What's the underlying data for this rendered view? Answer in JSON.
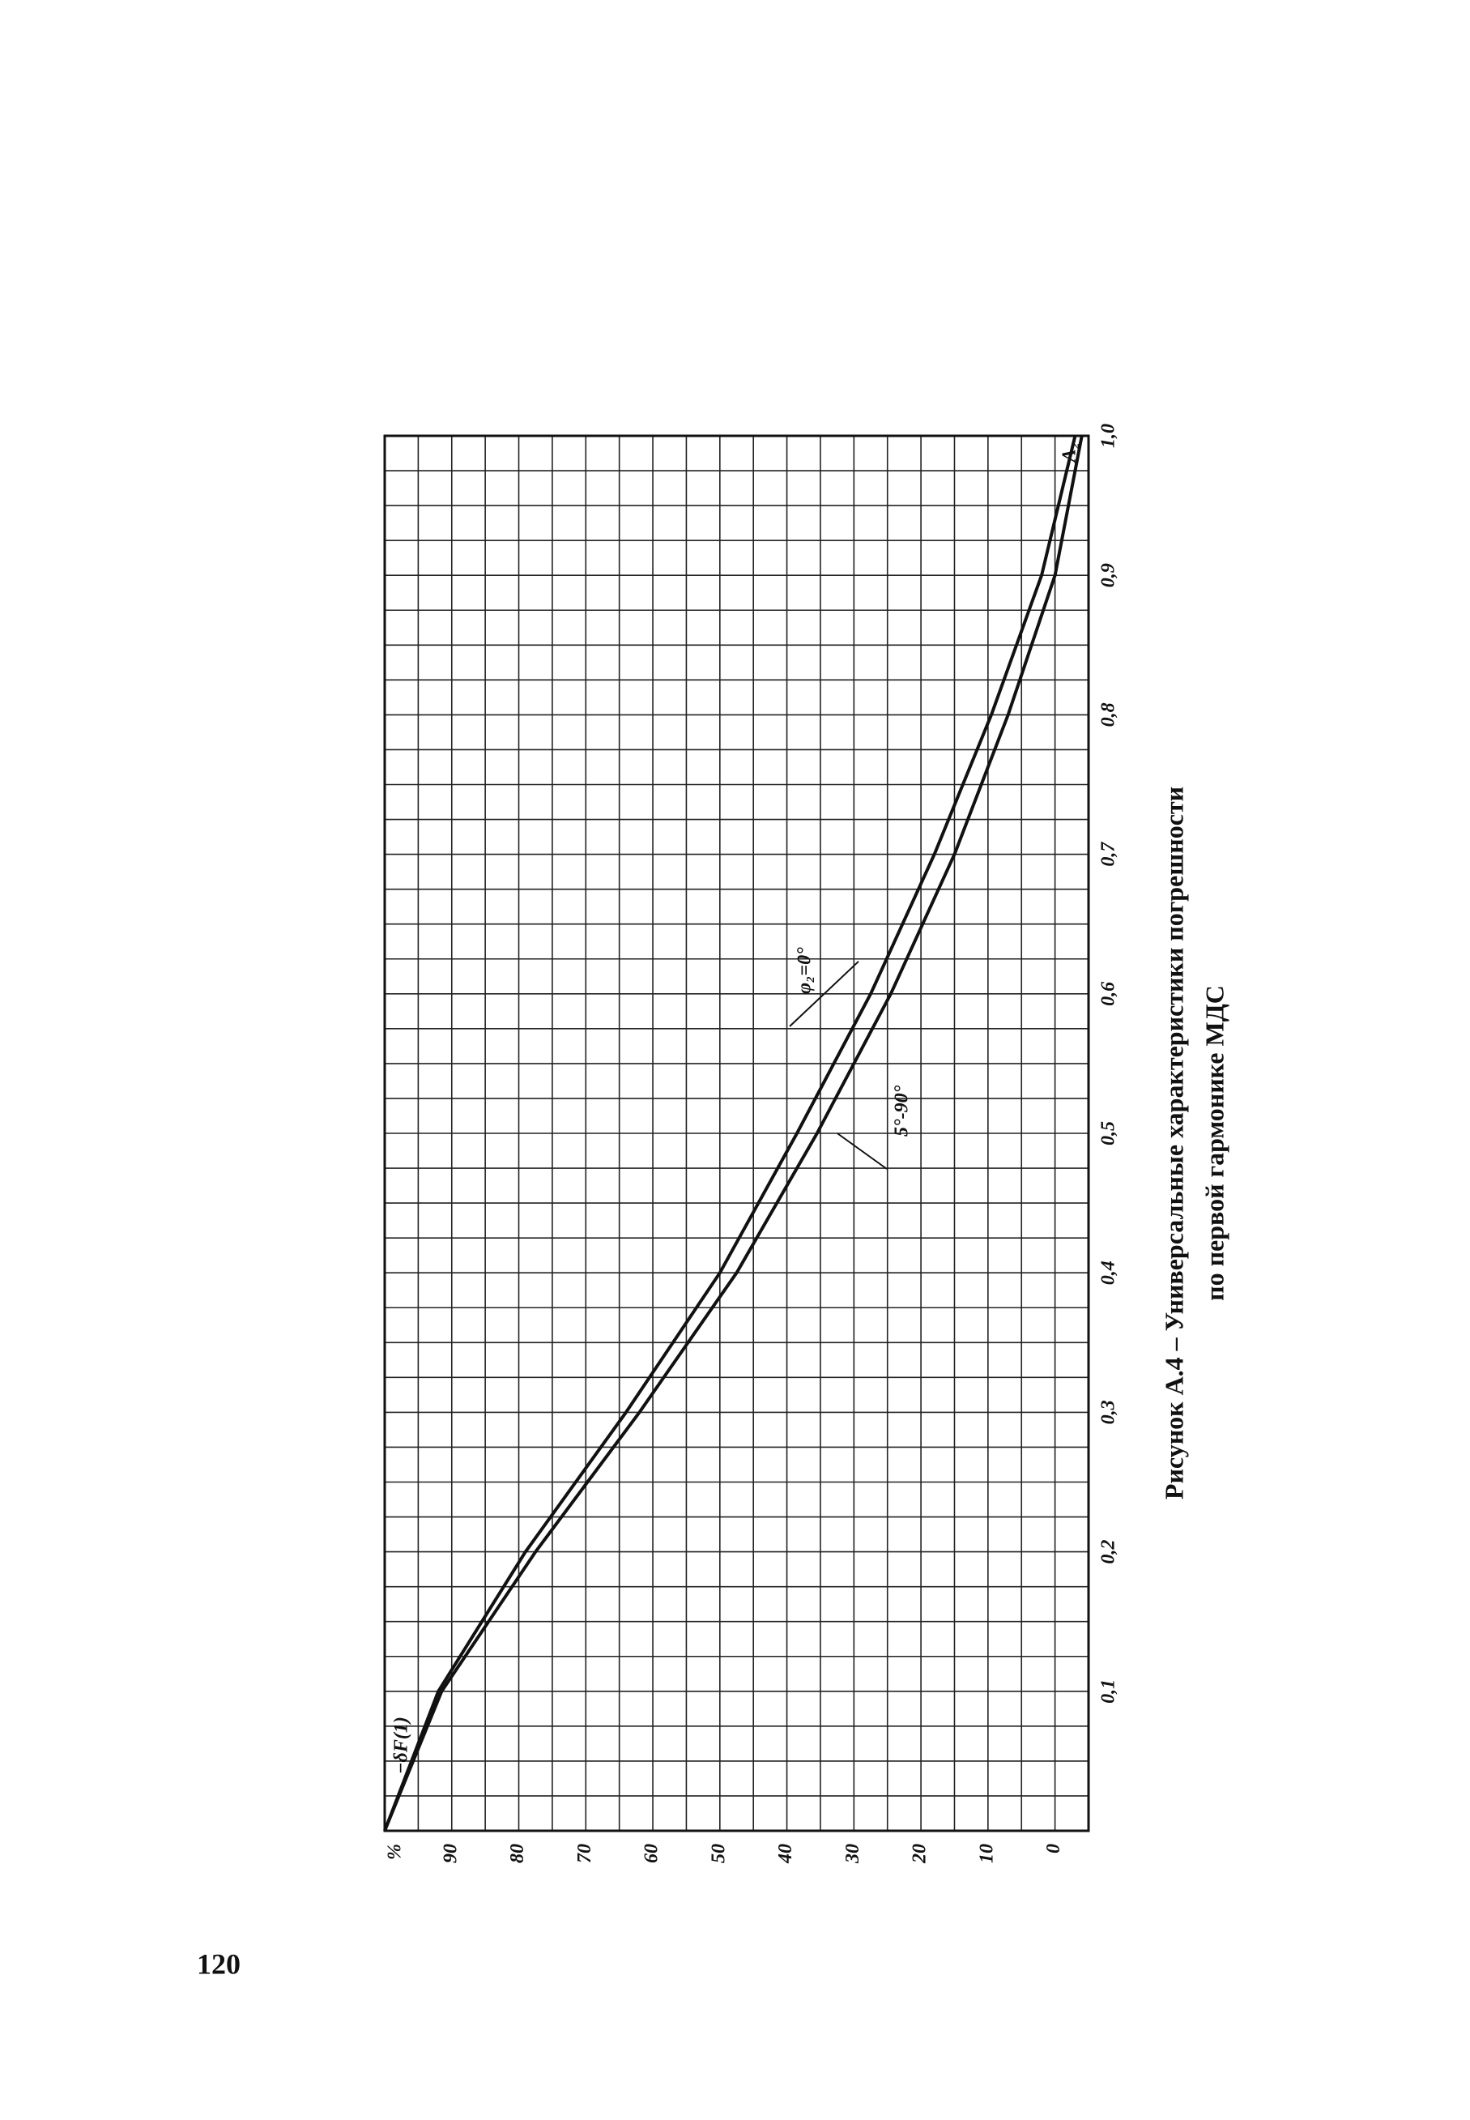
{
  "page_number": "120",
  "caption": [
    "Рисунок А.4 – Универсальные характеристики погрешности",
    "по первой гармонике МДС"
  ],
  "chart_data": {
    "type": "line",
    "x_label": "A₂",
    "y_label": "%",
    "annotation": "−δF(1)",
    "x": [
      0,
      0.1,
      0.2,
      0.3,
      0.4,
      0.5,
      0.6,
      0.7,
      0.8,
      0.9,
      1.0
    ],
    "series": [
      {
        "name": "φ₂=0°",
        "color": "#111111",
        "values": [
          100,
          92,
          79,
          64,
          50,
          38.5,
          27.5,
          18,
          9.5,
          2,
          -3
        ]
      },
      {
        "name": "5°-90°",
        "color": "#111111",
        "values": [
          100,
          91.5,
          77.5,
          62,
          47.5,
          35.5,
          24.5,
          15,
          7,
          0,
          -4
        ]
      }
    ],
    "xlim": [
      0,
      1
    ],
    "ylim": [
      -5,
      100
    ],
    "xticks": [
      {
        "value": 0.1,
        "label": "0,1"
      },
      {
        "value": 0.2,
        "label": "0,2"
      },
      {
        "value": 0.3,
        "label": "0,3"
      },
      {
        "value": 0.4,
        "label": "0,4"
      },
      {
        "value": 0.5,
        "label": "0,5"
      },
      {
        "value": 0.6,
        "label": "0,6"
      },
      {
        "value": 0.7,
        "label": "0,7"
      },
      {
        "value": 0.8,
        "label": "0,8"
      },
      {
        "value": 0.9,
        "label": "0,9"
      },
      {
        "value": 1,
        "label": "1,0"
      }
    ],
    "yticks": [
      0,
      10,
      20,
      30,
      40,
      50,
      60,
      70,
      80,
      90
    ],
    "xgrid": [
      0,
      0.025,
      0.05,
      0.075,
      0.1,
      0.125,
      0.15,
      0.175,
      0.2,
      0.225,
      0.25,
      0.275,
      0.3,
      0.325,
      0.35,
      0.375,
      0.4,
      0.425,
      0.45,
      0.475,
      0.5,
      0.525,
      0.55,
      0.575,
      0.6,
      0.625,
      0.65,
      0.675,
      0.7,
      0.725,
      0.75,
      0.775,
      0.8,
      0.825,
      0.85,
      0.875,
      0.9,
      0.925,
      0.95,
      0.975,
      1
    ],
    "ygrid": [
      -5,
      0,
      5,
      10,
      15,
      20,
      25,
      30,
      35,
      40,
      45,
      50,
      55,
      60,
      65,
      70,
      75,
      80,
      85,
      90,
      95,
      100
    ],
    "grid": true
  }
}
